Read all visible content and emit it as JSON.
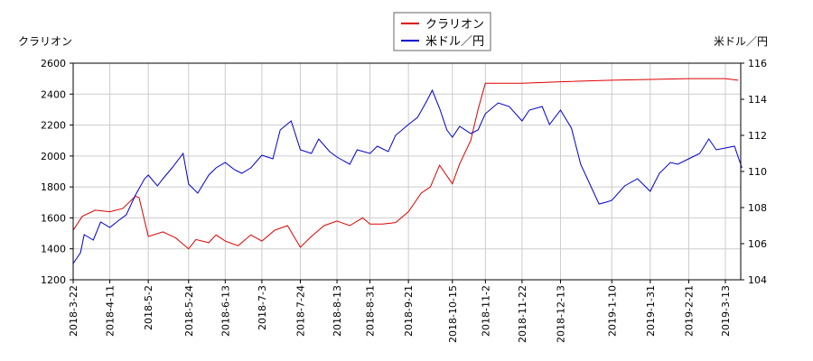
{
  "chart_data": {
    "type": "line",
    "left_axis_label": "クラリオン",
    "right_axis_label": "米ドル／円",
    "x_ticks": [
      "2018-3-22",
      "2018-4-11",
      "2018-5-2",
      "2018-5-24",
      "2018-6-13",
      "2018-7-3",
      "2018-7-24",
      "2018-8-13",
      "2018-8-31",
      "2018-9-21",
      "2018-10-15",
      "2018-11-2",
      "2018-11-22",
      "2018-12-13",
      "2019-1-10",
      "2019-1-31",
      "2019-2-21",
      "2019-3-13"
    ],
    "y_left": {
      "min": 1200,
      "max": 2600,
      "ticks": [
        1200,
        1400,
        1600,
        1800,
        2000,
        2200,
        2400,
        2600
      ]
    },
    "y_right": {
      "min": 104,
      "max": 116,
      "ticks": [
        104,
        106,
        108,
        110,
        112,
        114,
        116
      ]
    },
    "grid": true,
    "legend_position": "top-center",
    "series": [
      {
        "name": "クラリオン",
        "axis": "left",
        "color": "#dd0000",
        "points": [
          [
            "2018-3-22",
            1520
          ],
          [
            "2018-3-27",
            1610
          ],
          [
            "2018-4-3",
            1650
          ],
          [
            "2018-4-11",
            1640
          ],
          [
            "2018-4-18",
            1660
          ],
          [
            "2018-4-25",
            1740
          ],
          [
            "2018-4-27",
            1730
          ],
          [
            "2018-5-2",
            1480
          ],
          [
            "2018-5-10",
            1510
          ],
          [
            "2018-5-17",
            1470
          ],
          [
            "2018-5-24",
            1400
          ],
          [
            "2018-5-28",
            1460
          ],
          [
            "2018-6-4",
            1440
          ],
          [
            "2018-6-8",
            1490
          ],
          [
            "2018-6-13",
            1450
          ],
          [
            "2018-6-20",
            1420
          ],
          [
            "2018-6-27",
            1490
          ],
          [
            "2018-7-3",
            1450
          ],
          [
            "2018-7-10",
            1520
          ],
          [
            "2018-7-17",
            1550
          ],
          [
            "2018-7-24",
            1410
          ],
          [
            "2018-7-30",
            1480
          ],
          [
            "2018-8-6",
            1550
          ],
          [
            "2018-8-13",
            1580
          ],
          [
            "2018-8-20",
            1550
          ],
          [
            "2018-8-27",
            1600
          ],
          [
            "2018-8-31",
            1560
          ],
          [
            "2018-9-7",
            1560
          ],
          [
            "2018-9-14",
            1570
          ],
          [
            "2018-9-21",
            1640
          ],
          [
            "2018-9-28",
            1760
          ],
          [
            "2018-10-3",
            1800
          ],
          [
            "2018-10-8",
            1940
          ],
          [
            "2018-10-15",
            1820
          ],
          [
            "2018-10-19",
            1950
          ],
          [
            "2018-10-25",
            2100
          ],
          [
            "2018-10-29",
            2300
          ],
          [
            "2018-11-2",
            2470
          ],
          [
            "2018-11-9",
            2470
          ],
          [
            "2018-11-22",
            2470
          ],
          [
            "2018-12-13",
            2480
          ],
          [
            "2019-1-10",
            2490
          ],
          [
            "2019-1-31",
            2495
          ],
          [
            "2019-2-21",
            2500
          ],
          [
            "2019-3-13",
            2500
          ],
          [
            "2019-3-20",
            2490
          ]
        ]
      },
      {
        "name": "米ドル／円",
        "axis": "right",
        "color": "#0000cc",
        "points": [
          [
            "2018-3-22",
            104.9
          ],
          [
            "2018-3-26",
            105.5
          ],
          [
            "2018-3-28",
            106.5
          ],
          [
            "2018-4-2",
            106.2
          ],
          [
            "2018-4-6",
            107.2
          ],
          [
            "2018-4-11",
            106.9
          ],
          [
            "2018-4-16",
            107.3
          ],
          [
            "2018-4-20",
            107.6
          ],
          [
            "2018-4-25",
            108.7
          ],
          [
            "2018-4-30",
            109.6
          ],
          [
            "2018-5-2",
            109.8
          ],
          [
            "2018-5-7",
            109.2
          ],
          [
            "2018-5-10",
            109.6
          ],
          [
            "2018-5-15",
            110.2
          ],
          [
            "2018-5-21",
            111.0
          ],
          [
            "2018-5-24",
            109.3
          ],
          [
            "2018-5-29",
            108.8
          ],
          [
            "2018-6-4",
            109.8
          ],
          [
            "2018-6-8",
            110.2
          ],
          [
            "2018-6-13",
            110.5
          ],
          [
            "2018-6-18",
            110.1
          ],
          [
            "2018-6-22",
            109.9
          ],
          [
            "2018-6-27",
            110.2
          ],
          [
            "2018-7-3",
            110.9
          ],
          [
            "2018-7-9",
            110.7
          ],
          [
            "2018-7-13",
            112.3
          ],
          [
            "2018-7-19",
            112.8
          ],
          [
            "2018-7-24",
            111.2
          ],
          [
            "2018-7-30",
            111.0
          ],
          [
            "2018-8-3",
            111.8
          ],
          [
            "2018-8-9",
            111.1
          ],
          [
            "2018-8-13",
            110.8
          ],
          [
            "2018-8-20",
            110.4
          ],
          [
            "2018-8-24",
            111.2
          ],
          [
            "2018-8-31",
            111.0
          ],
          [
            "2018-9-4",
            111.4
          ],
          [
            "2018-9-10",
            111.1
          ],
          [
            "2018-9-14",
            112.0
          ],
          [
            "2018-9-21",
            112.6
          ],
          [
            "2018-9-26",
            113.0
          ],
          [
            "2018-10-1",
            113.9
          ],
          [
            "2018-10-4",
            114.5
          ],
          [
            "2018-10-8",
            113.5
          ],
          [
            "2018-10-12",
            112.3
          ],
          [
            "2018-10-15",
            111.9
          ],
          [
            "2018-10-19",
            112.5
          ],
          [
            "2018-10-25",
            112.1
          ],
          [
            "2018-10-29",
            112.3
          ],
          [
            "2018-11-2",
            113.2
          ],
          [
            "2018-11-9",
            113.8
          ],
          [
            "2018-11-15",
            113.6
          ],
          [
            "2018-11-22",
            112.8
          ],
          [
            "2018-11-26",
            113.4
          ],
          [
            "2018-12-3",
            113.6
          ],
          [
            "2018-12-7",
            112.6
          ],
          [
            "2018-12-13",
            113.4
          ],
          [
            "2018-12-19",
            112.4
          ],
          [
            "2018-12-24",
            110.4
          ],
          [
            "2019-1-3",
            108.2
          ],
          [
            "2019-1-7",
            108.3
          ],
          [
            "2019-1-10",
            108.4
          ],
          [
            "2019-1-17",
            109.2
          ],
          [
            "2019-1-24",
            109.6
          ],
          [
            "2019-1-31",
            108.9
          ],
          [
            "2019-2-5",
            109.9
          ],
          [
            "2019-2-11",
            110.5
          ],
          [
            "2019-2-15",
            110.4
          ],
          [
            "2019-2-21",
            110.7
          ],
          [
            "2019-2-27",
            111.0
          ],
          [
            "2019-3-4",
            111.8
          ],
          [
            "2019-3-8",
            111.2
          ],
          [
            "2019-3-13",
            111.3
          ],
          [
            "2019-3-18",
            111.4
          ],
          [
            "2019-3-22",
            110.2
          ]
        ]
      }
    ]
  }
}
